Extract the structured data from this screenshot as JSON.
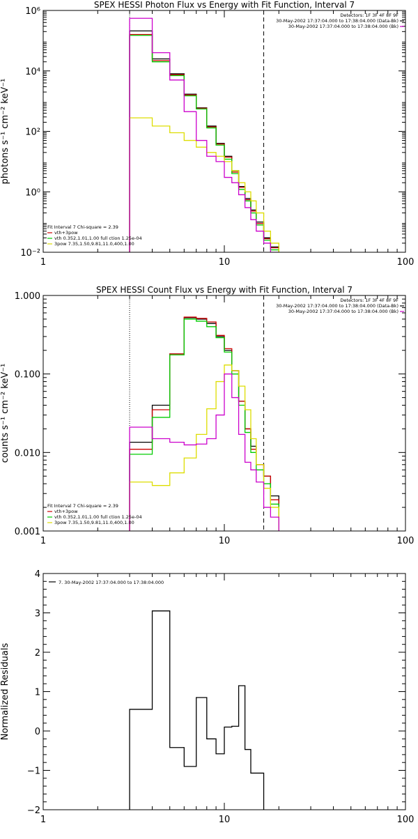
{
  "chart_data": [
    {
      "type": "line",
      "title": "SPEX HESSI Photon Flux vs Energy with Fit Function, Interval 7",
      "ylabel": "photons s⁻¹ cm⁻² keV⁻¹",
      "xlabel": "",
      "xscale": "log",
      "yscale": "log",
      "xlim": [
        1,
        100
      ],
      "ylim": [
        0.01,
        1000000
      ],
      "x_ticks": [
        1,
        10,
        100
      ],
      "x_ticklabels": [
        "1",
        "10",
        "100"
      ],
      "y_ticks": [
        0.01,
        1,
        100,
        10000,
        1000000
      ],
      "y_ticklabels": [
        "10⁻²",
        "10⁰",
        "10²",
        "10⁴",
        "10⁶"
      ],
      "vlines": [
        {
          "x": 3.0,
          "style": "dotted"
        },
        {
          "x": 16.5,
          "style": "dashed"
        }
      ],
      "info_lines": [
        "Detectors: 1F 3F 4F 8F 9F",
        "30-May-2002 17:37:04.000 to 17:38:04.000 (Data-Bk)",
        "30-May-2002 17:37:04.000 to 17:38:04.000 (Bk)"
      ],
      "fit_lines": [
        "Fit Interval 7   Chi-square = 2.39",
        "vth+3pow",
        "vth 0.352,1.01,1.00  full ction 1.25e-04",
        "3pow 7.35,1.50,9.81,11.0,400,1.00"
      ],
      "bin_edges": [
        3.0,
        4.0,
        5.0,
        6.0,
        7.0,
        8.0,
        9.0,
        10.0,
        11.0,
        12.0,
        13.0,
        14.0,
        15.0,
        16.5,
        18.0,
        20.0
      ],
      "series": [
        {
          "name": "Data-Bk",
          "color": "#000000",
          "values": [
            210000,
            25000,
            8000,
            1700,
            600,
            150,
            40,
            15,
            5,
            1.5,
            0.6,
            0.25,
            0.1,
            0.03,
            0.015
          ]
        },
        {
          "name": "vth+3pow",
          "color": "#cc0000",
          "values": [
            160000,
            22000,
            7500,
            1600,
            580,
            140,
            38,
            14,
            4.5,
            1.4,
            0.55,
            0.23,
            0.09,
            0.028,
            0.014
          ]
        },
        {
          "name": "vth",
          "color": "#00cc00",
          "values": [
            150000,
            20000,
            7000,
            1500,
            550,
            130,
            35,
            12,
            4.0,
            1.2,
            0.5,
            0.2,
            0.08,
            0.025,
            0.012
          ]
        },
        {
          "name": "3pow",
          "color": "#dddd00",
          "values": [
            280,
            150,
            90,
            50,
            30,
            20,
            15,
            10,
            5,
            2,
            1,
            0.5,
            0.2,
            0.05,
            0.02
          ]
        },
        {
          "name": "Bk",
          "color": "#cc00cc",
          "values": [
            550000,
            40000,
            5000,
            450,
            50,
            15,
            10,
            3,
            2,
            0.8,
            0.3,
            0.12,
            0.05,
            0.02,
            0.01
          ]
        }
      ]
    },
    {
      "type": "line",
      "title": "SPEX HESSI Count Flux vs Energy with Fit Function, Interval 7",
      "ylabel": "counts s⁻¹ cm⁻² keV⁻¹",
      "xlabel": "",
      "xscale": "log",
      "yscale": "log",
      "xlim": [
        1,
        100
      ],
      "ylim": [
        0.001,
        1.0
      ],
      "x_ticks": [
        1,
        10,
        100
      ],
      "x_ticklabels": [
        "1",
        "10",
        "100"
      ],
      "y_ticks": [
        0.001,
        0.01,
        0.1,
        1.0
      ],
      "y_ticklabels": [
        "0.001",
        "0.010",
        "0.100",
        "1.000"
      ],
      "vlines": [
        {
          "x": 3.0,
          "style": "dotted"
        },
        {
          "x": 16.5,
          "style": "dashed"
        }
      ],
      "info_lines": [
        "Detectors: 1F 3F 4F 8F 9F",
        "30-May-2002 17:37:04.000 to 17:38:04.000 (Data-Bk)",
        "30-May-2002 17:37:04.000 to 17:38:04.000 (Bk)"
      ],
      "fit_lines": [
        "Fit Interval 7   Chi-square = 2.39",
        "vth+3pow",
        "vth 0.352,1.01,1.00  full ction 1.25e-04",
        "3pow 7.35,1.50,9.81,11.0,400,1.00"
      ],
      "bin_edges": [
        3.0,
        4.0,
        5.0,
        6.0,
        7.0,
        8.0,
        9.0,
        10.0,
        11.0,
        12.0,
        13.0,
        14.0,
        15.0,
        16.5,
        18.0,
        20.0
      ],
      "series": [
        {
          "name": "Data-Bk",
          "color": "#000000",
          "values": [
            0.0135,
            0.04,
            0.18,
            0.52,
            0.5,
            0.44,
            0.3,
            0.2,
            0.11,
            0.045,
            0.02,
            0.012,
            0.007,
            0.005,
            0.0028
          ]
        },
        {
          "name": "vth+3pow",
          "color": "#cc0000",
          "values": [
            0.011,
            0.035,
            0.18,
            0.53,
            0.51,
            0.46,
            0.31,
            0.21,
            0.11,
            0.045,
            0.02,
            0.011,
            0.007,
            0.005,
            0.0025
          ]
        },
        {
          "name": "vth",
          "color": "#00cc00",
          "values": [
            0.0095,
            0.028,
            0.175,
            0.5,
            0.47,
            0.4,
            0.29,
            0.19,
            0.1,
            0.04,
            0.018,
            0.01,
            0.006,
            0.004,
            0.0022
          ]
        },
        {
          "name": "3pow",
          "color": "#dddd00",
          "values": [
            0.0042,
            0.0038,
            0.0055,
            0.0085,
            0.017,
            0.036,
            0.08,
            0.13,
            0.11,
            0.07,
            0.035,
            0.015,
            0.007,
            0.0035,
            0.002
          ]
        },
        {
          "name": "Bk",
          "color": "#cc00cc",
          "values": [
            0.021,
            0.015,
            0.0135,
            0.0125,
            0.0128,
            0.015,
            0.03,
            0.1,
            0.05,
            0.017,
            0.0075,
            0.006,
            0.0042,
            0.002,
            0.0015
          ]
        }
      ]
    },
    {
      "type": "line",
      "title": "",
      "ylabel": "Normalized Residuals",
      "xlabel": "",
      "xscale": "log",
      "xlim": [
        1,
        100
      ],
      "ylim": [
        -2,
        4
      ],
      "x_ticks": [
        1,
        10,
        100
      ],
      "x_ticklabels": [
        "1",
        "10",
        "100"
      ],
      "y_ticks": [
        -2,
        -1,
        0,
        1,
        2,
        3,
        4
      ],
      "y_ticklabels": [
        "−2",
        "−1",
        "0",
        "1",
        "2",
        "3",
        "4"
      ],
      "info_lines": [
        "7. 30-May-2002 17:37:04.000 to 17:38:04.000"
      ],
      "bin_edges": [
        3.0,
        4.0,
        5.0,
        6.0,
        7.0,
        7.5,
        8.0,
        9.0,
        10.0,
        11.0,
        12.0,
        13.0,
        14.0,
        15.0,
        16.5
      ],
      "series": [
        {
          "name": "7. 30-May-2002 17:37:04.000 to 17:38:04.000",
          "color": "#000000",
          "values": [
            0.55,
            3.05,
            -0.42,
            -0.9,
            0.85,
            0.85,
            -0.2,
            -0.58,
            0.1,
            0.12,
            1.15,
            -0.47,
            -1.07,
            -1.07
          ]
        }
      ]
    }
  ]
}
